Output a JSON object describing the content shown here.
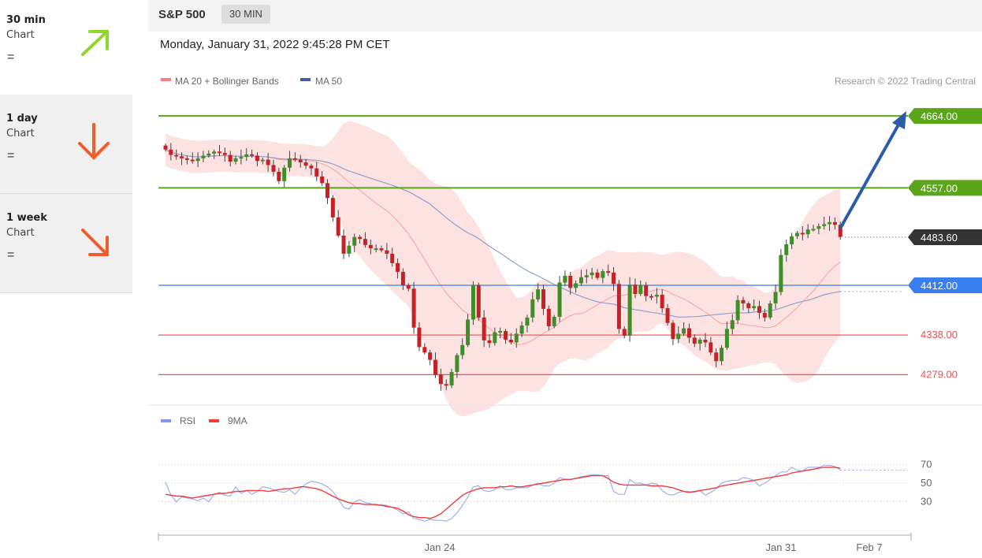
{
  "sidebar": {
    "items": [
      {
        "title": "30 min",
        "sub": "Chart",
        "eq": "=",
        "arrow": "up-right-arrow-icon",
        "color": "#8fd82a"
      },
      {
        "title": "1 day",
        "sub": "Chart",
        "eq": "=",
        "arrow": "down-arrow-icon",
        "color": "#f45b2a"
      },
      {
        "title": "1 week",
        "sub": "Chart",
        "eq": "=",
        "arrow": "down-right-arrow-icon",
        "color": "#f45b2a"
      }
    ]
  },
  "header": {
    "instrument": "S&P 500",
    "timeframe": "30 MIN",
    "datetime": "Monday, January 31, 2022 9:45:28 PM CET"
  },
  "chart_data": [
    {
      "type": "candlestick",
      "legend": [
        {
          "label": "MA 20 + Bollinger Bands",
          "color": "#f88080"
        },
        {
          "label": "MA 50",
          "color": "#3c5fa8"
        }
      ],
      "credit": "Research © 2022 Trading Central",
      "ylim": [
        4236,
        4690
      ],
      "levels": [
        {
          "value": 4664.0,
          "label": "4664.00",
          "color": "#5aa51a",
          "kind": "resistance"
        },
        {
          "value": 4557.0,
          "label": "4557.00",
          "color": "#5aa51a",
          "kind": "resistance"
        },
        {
          "value": 4483.6,
          "label": "4483.60",
          "color": "#333333",
          "kind": "last"
        },
        {
          "value": 4412.0,
          "label": "4412.00",
          "color": "#3a7ff0",
          "kind": "pivot"
        },
        {
          "value": 4338.0,
          "label": "4338.00",
          "color": "#f05050",
          "kind": "support"
        },
        {
          "value": 4279.0,
          "label": "4279.00",
          "color": "#f05050",
          "kind": "support"
        }
      ],
      "x_ticks": [
        "Jan 24",
        "Jan 31",
        "Feb 7"
      ],
      "closes": [
        4614,
        4606,
        4604,
        4601,
        4599,
        4597,
        4601,
        4605,
        4608,
        4611,
        4609,
        4606,
        4596,
        4601,
        4603,
        4607,
        4605,
        4597,
        4599,
        4591,
        4581,
        4567,
        4587,
        4601,
        4599,
        4595,
        4590,
        4586,
        4574,
        4564,
        4542,
        4513,
        4486,
        4459,
        4471,
        4484,
        4481,
        4472,
        4467,
        4467,
        4464,
        4459,
        4445,
        4432,
        4412,
        4407,
        4349,
        4320,
        4312,
        4301,
        4279,
        4265,
        4263,
        4283,
        4308,
        4323,
        4361,
        4412,
        4364,
        4330,
        4326,
        4342,
        4344,
        4331,
        4327,
        4340,
        4352,
        4364,
        4391,
        4406,
        4377,
        4351,
        4365,
        4416,
        4426,
        4408,
        4415,
        4424,
        4427,
        4431,
        4423,
        4433,
        4431,
        4414,
        4347,
        4337,
        4413,
        4399,
        4412,
        4396,
        4395,
        4398,
        4378,
        4356,
        4332,
        4340,
        4348,
        4334,
        4325,
        4331,
        4327,
        4312,
        4299,
        4319,
        4347,
        4360,
        4390,
        4385,
        4378,
        4381,
        4371,
        4364,
        4385,
        4402,
        4457,
        4473,
        4485,
        4490,
        4488,
        4495,
        4496,
        4500,
        4503,
        4506,
        4502,
        4484
      ]
    },
    {
      "type": "line",
      "legend": [
        {
          "label": "RSI",
          "color": "#7f9ae8"
        },
        {
          "label": "9MA",
          "color": "#f03c3c"
        }
      ],
      "ylim": [
        0,
        100
      ],
      "y_ticks": [
        "70",
        "50",
        "30"
      ],
      "series": [
        {
          "name": "RSI",
          "values": [
            51,
            37,
            30,
            35,
            34,
            33,
            31,
            34,
            30,
            38,
            40,
            37,
            36,
            46,
            39,
            42,
            38,
            41,
            46,
            45,
            43,
            41,
            40,
            43,
            38,
            45,
            49,
            52,
            51,
            49,
            46,
            41,
            33,
            24,
            22,
            30,
            32,
            29,
            28,
            26,
            27,
            26,
            24,
            21,
            17,
            19,
            12,
            11,
            9,
            11,
            10,
            10,
            9,
            12,
            18,
            26,
            35,
            46,
            47,
            42,
            41,
            43,
            47,
            43,
            43,
            45,
            45,
            45,
            48,
            50,
            47,
            47,
            50,
            56,
            54,
            54,
            55,
            57,
            58,
            59,
            59,
            58,
            58,
            41,
            38,
            38,
            54,
            50,
            50,
            48,
            50,
            49,
            42,
            38,
            37,
            40,
            41,
            41,
            40,
            42,
            37,
            40,
            44,
            50,
            52,
            53,
            53,
            56,
            55,
            53,
            47,
            50,
            54,
            58,
            62,
            62,
            67,
            64,
            63,
            67,
            67,
            67,
            69,
            69,
            68,
            64
          ]
        },
        {
          "name": "9MA",
          "values": [
            38,
            37,
            36,
            36,
            35,
            34,
            35,
            36,
            37,
            38,
            39,
            39,
            40,
            41,
            41,
            42,
            42,
            42,
            42,
            41,
            42,
            43,
            44,
            44,
            45,
            46,
            46,
            45,
            44,
            42,
            39,
            36,
            33,
            31,
            29,
            28,
            28,
            27,
            27,
            27,
            26,
            25,
            24,
            23,
            20,
            16,
            14,
            13,
            13,
            12,
            14,
            17,
            22,
            27,
            32,
            37,
            40,
            42,
            44,
            45,
            45,
            45,
            46,
            46,
            47,
            46,
            46,
            47,
            48,
            49,
            50,
            51,
            52,
            53,
            54,
            54,
            55,
            56,
            57,
            58,
            58,
            58,
            55,
            51,
            49,
            48,
            48,
            48,
            48,
            48,
            47,
            47,
            47,
            46,
            45,
            43,
            41,
            40,
            41,
            42,
            43,
            44,
            45,
            47,
            48,
            49,
            50,
            51,
            52,
            53,
            54,
            55,
            56,
            57,
            58,
            59,
            61,
            62,
            63,
            64,
            65,
            66,
            67,
            67,
            67,
            66
          ]
        }
      ]
    }
  ]
}
